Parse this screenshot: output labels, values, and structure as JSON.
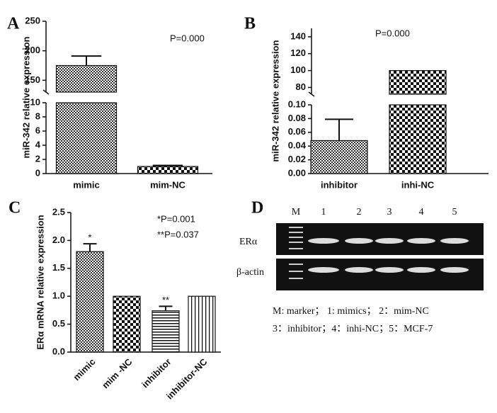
{
  "chart_data": [
    {
      "type": "bar",
      "panel": "A",
      "ylabel": "miR-342 relative expression",
      "annotations": [
        "P=0.000"
      ],
      "categories": [
        "mimic",
        "mim-NC"
      ],
      "values": [
        175,
        1
      ],
      "errors": [
        16,
        0.15
      ],
      "patterns": [
        "dots",
        "checker"
      ],
      "segments": [
        {
          "ylim": [
            0,
            10
          ],
          "yticks": [
            0,
            2,
            4,
            6,
            8,
            10
          ]
        },
        {
          "ylim": [
            130,
            250
          ],
          "yticks": [
            150,
            200,
            250
          ]
        }
      ]
    },
    {
      "type": "bar",
      "panel": "B",
      "ylabel": "miR-342 relative expression",
      "annotations": [
        "P=0.000"
      ],
      "categories": [
        "inhibitor",
        "inhi-NC"
      ],
      "values": [
        0.048,
        100
      ],
      "errors": [
        0.031,
        0
      ],
      "patterns": [
        "dots",
        "checker"
      ],
      "segments": [
        {
          "ylim": [
            0,
            0.1
          ],
          "yticks": [
            {
              "value": 0,
              "label": "0.00"
            },
            0.02,
            0.04,
            0.06,
            0.08,
            {
              "value": 0.1,
              "label": "0.10"
            }
          ]
        },
        {
          "ylim": [
            72,
            150
          ],
          "yticks": [
            80,
            100,
            120,
            140
          ]
        }
      ]
    },
    {
      "type": "bar",
      "panel": "C",
      "ylabel": "ERα  mRNA relative expression",
      "annotations": [
        "*P=0.001",
        "**P=0.037"
      ],
      "categories": [
        "mimic",
        "mim -NC",
        "inhibitor",
        "inhibitor-NC"
      ],
      "values": [
        1.8,
        1.0,
        0.74,
        1.0
      ],
      "errors": [
        0.14,
        0,
        0.08,
        0
      ],
      "markers": [
        "*",
        null,
        "**",
        null
      ],
      "patterns": [
        "dots",
        "checker",
        "hlines",
        "vlines"
      ],
      "segments": [
        {
          "ylim": [
            0,
            2.5
          ],
          "yticks": [
            {
              "value": 0,
              "label": "0.0"
            },
            0.5,
            {
              "value": 1,
              "label": "1.0"
            },
            1.5,
            {
              "value": 2,
              "label": "2.0"
            },
            2.5
          ]
        }
      ]
    }
  ],
  "gel": {
    "panel": "D",
    "lanes": [
      "M",
      "1",
      "2",
      "3",
      "4",
      "5"
    ],
    "rows": [
      "ERα",
      "β-actin"
    ],
    "legend": [
      "M: marker；  1: mimics；  2：mim-NC",
      "3：inhibitor；4：inhi-NC；5：MCF-7"
    ]
  }
}
